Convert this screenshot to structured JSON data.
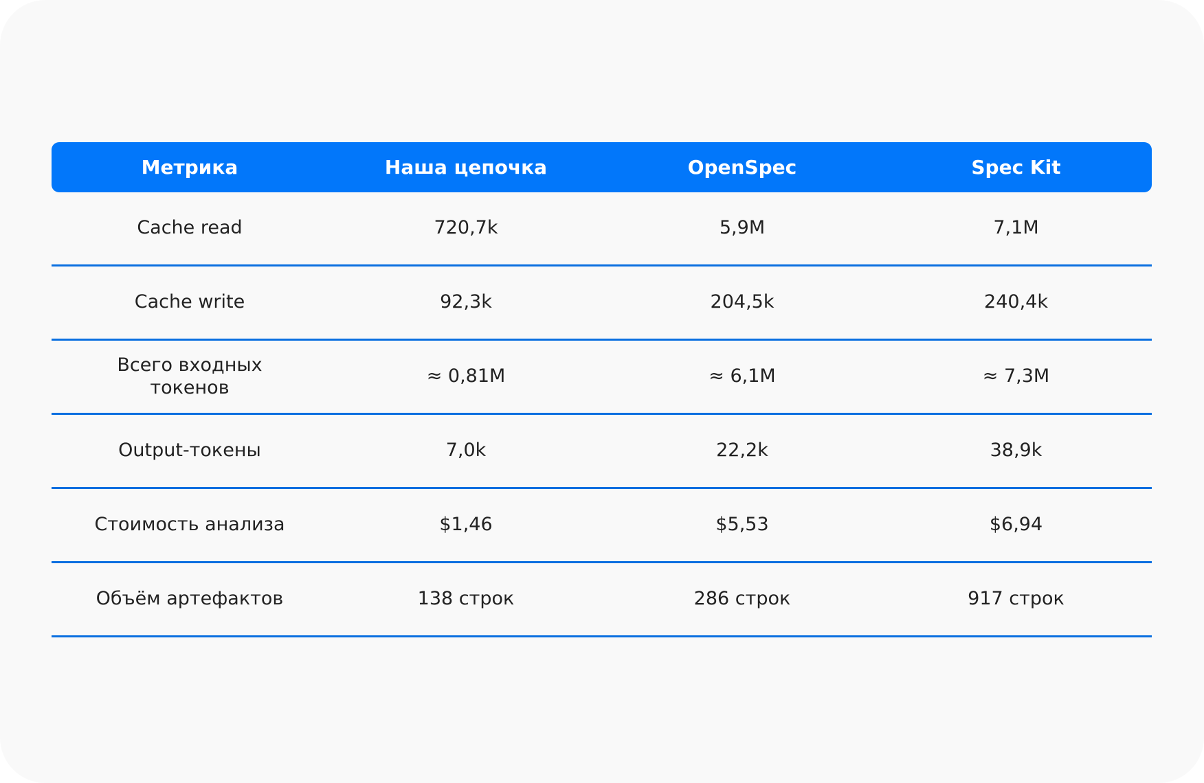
{
  "table": {
    "header": [
      "Метрика",
      "Наша цепочка",
      "OpenSpec",
      "Spec Kit"
    ],
    "rows": [
      [
        "Cache read",
        "720,7k",
        "5,9M",
        "7,1M"
      ],
      [
        "Cache write",
        "92,3k",
        "204,5k",
        "240,4k"
      ],
      [
        "Всего входных токенов",
        "≈ 0,81M",
        "≈ 6,1M",
        "≈ 7,3M"
      ],
      [
        "Output-токены",
        "7,0k",
        "22,2k",
        "38,9k"
      ],
      [
        "Стоимость анализа",
        "$1,46",
        "$5,53",
        "$6,94"
      ],
      [
        "Объём артефактов",
        "138 строк",
        "286 строк",
        "917 строк"
      ]
    ]
  }
}
